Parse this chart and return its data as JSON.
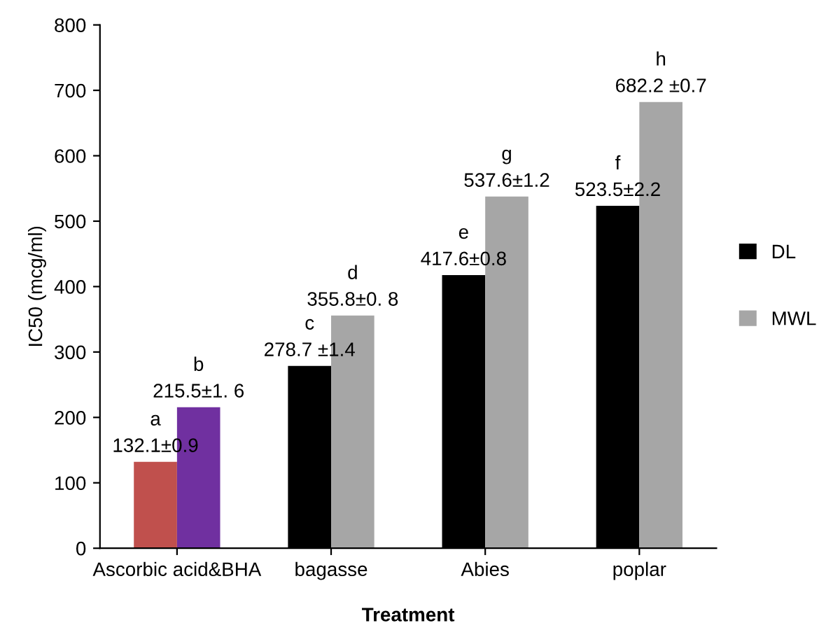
{
  "chart_data": {
    "type": "bar",
    "xlabel": "Treatment",
    "ylabel": "IC50 (mcg/ml)",
    "categories": [
      "Ascorbic acid&BHA",
      "bagasse",
      "Abies",
      "poplar"
    ],
    "series": [
      {
        "name": "DL",
        "color": "#000000",
        "colors": [
          "#c0504d",
          "#000000",
          "#000000",
          "#000000"
        ],
        "values": [
          132.1,
          278.7,
          417.6,
          523.5
        ],
        "value_labels": [
          "a\n132.1±0.9",
          "c\n278.7 ±1.4",
          "e\n417.6±0.8",
          "f\n523.5±2.2"
        ]
      },
      {
        "name": "MWL",
        "color": "#a6a6a6",
        "colors": [
          "#7030a0",
          "#a6a6a6",
          "#a6a6a6",
          "#a6a6a6"
        ],
        "values": [
          215.5,
          355.8,
          537.6,
          682.2
        ],
        "value_labels": [
          "b\n215.5±1. 6",
          "d\n355.8±0. 8",
          "g\n537.6±1.2",
          "h\n682.2 ±0.7"
        ]
      }
    ],
    "ylim": [
      0,
      800
    ],
    "yticks": [
      0,
      100,
      200,
      300,
      400,
      500,
      600,
      700,
      800
    ],
    "grid": false,
    "legend": "right"
  }
}
